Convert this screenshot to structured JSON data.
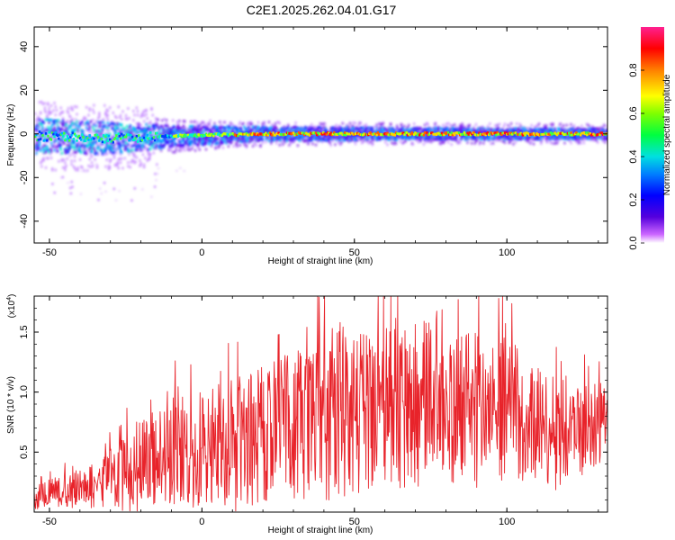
{
  "figure": {
    "title": "C2E1.2025.262.04.01.G17"
  },
  "chart_data": [
    {
      "type": "heatmap",
      "xlabel": "Height of straight line (km)",
      "ylabel": "Frequency (Hz)",
      "xlim": [
        -55,
        133
      ],
      "ylim": [
        -50,
        49
      ],
      "xticks": [
        -50,
        0,
        50,
        100
      ],
      "yticks": [
        -40,
        -20,
        0,
        20,
        40
      ],
      "colorbar": {
        "label": "Normalized spectral amplitude",
        "range": [
          0,
          1
        ],
        "ticks": [
          0.0,
          0.2,
          0.4,
          0.6,
          0.8
        ]
      },
      "ridge": {
        "description_points": [
          {
            "x": -55,
            "center_hz": -1,
            "halfwidth_hz": 10
          },
          {
            "x": -30,
            "center_hz": -2,
            "halfwidth_hz": 9
          },
          {
            "x": -10,
            "center_hz": -1,
            "halfwidth_hz": 6
          },
          {
            "x": 20,
            "center_hz": 0,
            "halfwidth_hz": 4
          },
          {
            "x": 60,
            "center_hz": 0,
            "halfwidth_hz": 3.5
          },
          {
            "x": 133,
            "center_hz": 0,
            "halfwidth_hz": 3
          }
        ]
      }
    },
    {
      "type": "line",
      "xlabel": "Height of straight line (km)",
      "ylabel": "SNR (10 * v/v)",
      "yscale_label": "(x10",
      "yscale_exp": "4",
      "xlim": [
        -55,
        133
      ],
      "ylim": [
        0,
        1.8
      ],
      "xticks": [
        -50,
        0,
        50,
        100
      ],
      "yticks": [
        0.5,
        1.0,
        1.5
      ],
      "series": [
        {
          "color": "#e8232a",
          "x": [
            -55,
            -50,
            -45,
            -40,
            -35,
            -30,
            -25,
            -20,
            -15,
            -10,
            -5,
            0,
            5,
            10,
            15,
            20,
            25,
            30,
            35,
            40,
            45,
            50,
            55,
            60,
            65,
            70,
            75,
            80,
            85,
            90,
            95,
            100,
            105,
            110,
            115,
            120,
            125,
            130,
            133
          ],
          "y": [
            0.12,
            0.15,
            0.18,
            0.2,
            0.22,
            0.28,
            0.32,
            0.4,
            0.45,
            0.52,
            0.5,
            0.55,
            0.58,
            0.55,
            0.6,
            0.65,
            0.7,
            0.72,
            0.75,
            0.8,
            0.85,
            0.8,
            0.85,
            0.88,
            0.85,
            0.9,
            0.92,
            0.85,
            0.88,
            0.85,
            0.82,
            0.9,
            0.8,
            0.75,
            0.6,
            0.75,
            0.7,
            0.72,
            0.8
          ],
          "amplitude": [
            0.1,
            0.12,
            0.14,
            0.17,
            0.2,
            0.25,
            0.35,
            0.4,
            0.42,
            0.45,
            0.5,
            0.48,
            0.5,
            0.55,
            0.58,
            0.6,
            0.62,
            0.62,
            0.65,
            0.7,
            0.75,
            0.7,
            0.65,
            0.7,
            0.65,
            0.7,
            0.75,
            0.65,
            0.6,
            0.65,
            0.62,
            0.6,
            0.55,
            0.5,
            0.45,
            0.45,
            0.4,
            0.35,
            0.3
          ]
        }
      ]
    }
  ]
}
